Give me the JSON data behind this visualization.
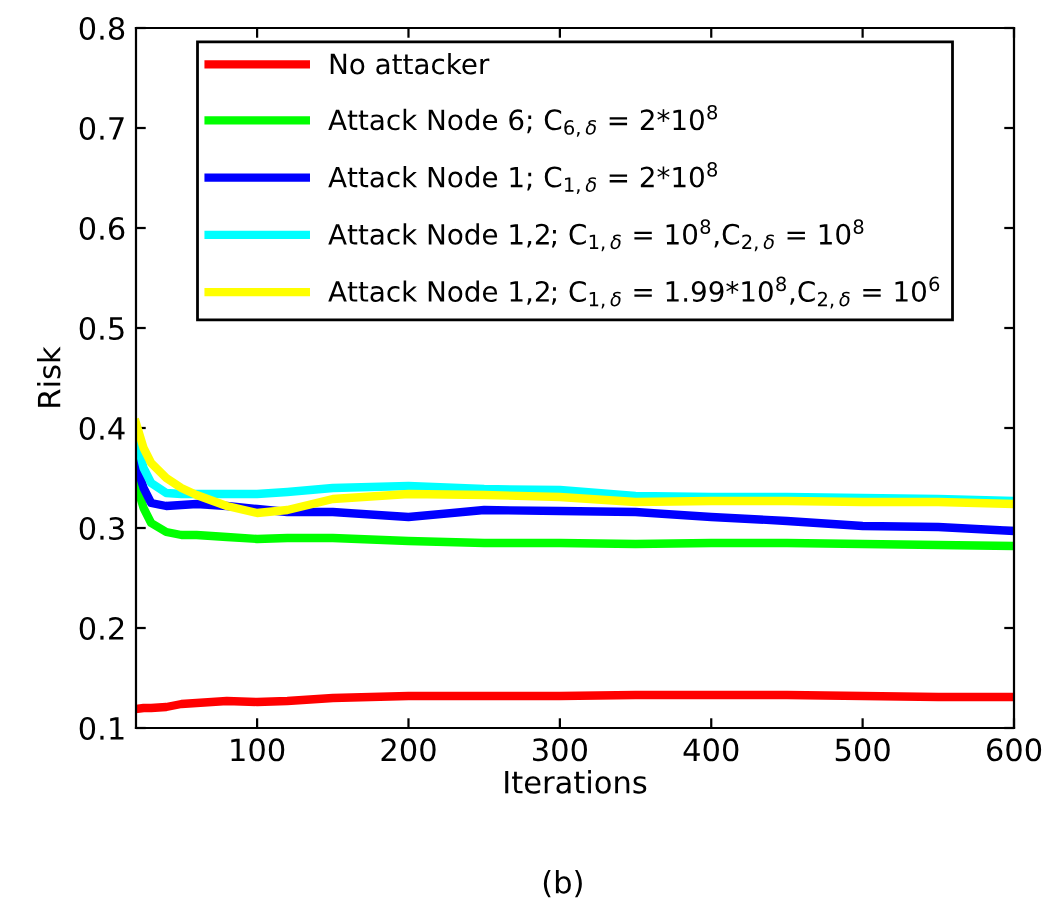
{
  "chart_data": {
    "type": "line",
    "xlabel": "Iterations",
    "ylabel": "Risk",
    "x": [
      20,
      25,
      30,
      40,
      50,
      60,
      80,
      100,
      120,
      150,
      200,
      250,
      300,
      350,
      400,
      450,
      500,
      550,
      600
    ],
    "series": [
      {
        "name": "No attacker",
        "color": "#ff0000",
        "values": [
          0.119,
          0.12,
          0.12,
          0.121,
          0.124,
          0.125,
          0.127,
          0.126,
          0.127,
          0.13,
          0.132,
          0.132,
          0.132,
          0.133,
          0.133,
          0.133,
          0.132,
          0.131,
          0.131
        ]
      },
      {
        "name": "Attack Node 6; C$_{6,δ}$ = 2*10$^{8}$",
        "color": "#00ff00",
        "values": [
          0.345,
          0.32,
          0.305,
          0.296,
          0.293,
          0.293,
          0.291,
          0.289,
          0.29,
          0.29,
          0.287,
          0.285,
          0.285,
          0.284,
          0.285,
          0.285,
          0.284,
          0.283,
          0.282
        ]
      },
      {
        "name": "Attack Node 1; C$_{1,δ}$ = 2*10$^{8}$",
        "color": "#0000ff",
        "values": [
          0.365,
          0.34,
          0.325,
          0.322,
          0.323,
          0.324,
          0.322,
          0.319,
          0.316,
          0.316,
          0.311,
          0.318,
          0.317,
          0.316,
          0.311,
          0.307,
          0.302,
          0.301,
          0.297
        ]
      },
      {
        "name": "Attack Node 1,2; C$_{1,δ}$ = 10$^{8}$,C$_{2,δ}$ = 10$^{8}$",
        "color": "#00ffff",
        "values": [
          0.39,
          0.36,
          0.345,
          0.335,
          0.334,
          0.334,
          0.334,
          0.334,
          0.336,
          0.34,
          0.342,
          0.339,
          0.338,
          0.332,
          0.331,
          0.331,
          0.33,
          0.329,
          0.327
        ]
      },
      {
        "name": "Attack Node 1,2; C$_{1,δ}$ = 1.99*10$^{8}$,C$_{2,δ}$ = 10$^{6}$",
        "color": "#ffff00",
        "values": [
          0.405,
          0.38,
          0.365,
          0.35,
          0.34,
          0.333,
          0.322,
          0.315,
          0.318,
          0.329,
          0.334,
          0.333,
          0.331,
          0.326,
          0.327,
          0.327,
          0.326,
          0.326,
          0.324
        ]
      }
    ],
    "xlim": [
      20,
      600
    ],
    "xticks": [
      100,
      200,
      300,
      400,
      500,
      600
    ],
    "ylim": [
      0.1,
      0.8
    ],
    "yticks": [
      0.1,
      0.2,
      0.3,
      0.4,
      0.5,
      0.6,
      0.7,
      0.8
    ],
    "grid": false,
    "legend": "top",
    "marker": "none",
    "line_style": "solid",
    "annotations": [
      "(b)"
    ]
  }
}
